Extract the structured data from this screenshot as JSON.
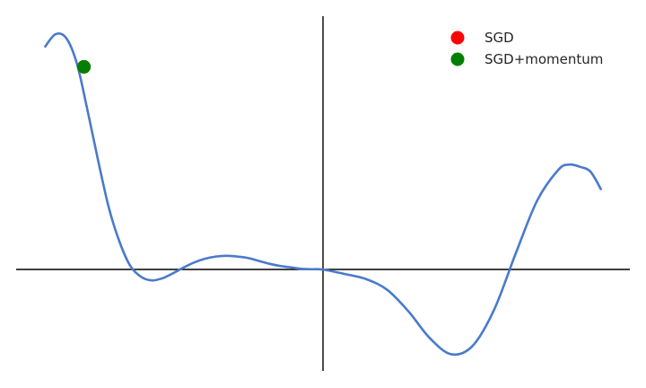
{
  "chart_data": {
    "type": "line",
    "title": "",
    "xlabel": "",
    "ylabel": "",
    "xlim": [
      -4.3,
      4.3
    ],
    "ylim": [
      -1.4,
      3.5
    ],
    "axes_through_origin": true,
    "grid": false,
    "legend_placement": "top-right",
    "series": [
      {
        "kind": "curve",
        "color": "#4a7acb",
        "x": [
          -3.9,
          -3.75,
          -3.6,
          -3.45,
          -3.3,
          -3.15,
          -3.0,
          -2.85,
          -2.7,
          -2.55,
          -2.4,
          -2.25,
          -2.1,
          -1.95,
          -1.8,
          -1.65,
          -1.5,
          -1.35,
          -1.2,
          -1.05,
          -0.9,
          -0.75,
          -0.6,
          -0.45,
          -0.3,
          -0.15,
          0.0,
          0.3,
          0.6,
          0.9,
          1.2,
          1.5,
          1.8,
          2.1,
          2.4,
          2.7,
          3.0,
          3.3,
          3.45,
          3.6,
          3.75,
          3.9
        ],
        "y": [
          3.07,
          3.25,
          3.2,
          2.85,
          2.2,
          1.5,
          0.85,
          0.38,
          0.05,
          -0.1,
          -0.15,
          -0.12,
          -0.05,
          0.03,
          0.1,
          0.15,
          0.18,
          0.19,
          0.18,
          0.16,
          0.12,
          0.08,
          0.05,
          0.03,
          0.01,
          0.005,
          0.0,
          -0.06,
          -0.13,
          -0.28,
          -0.58,
          -0.95,
          -1.17,
          -1.05,
          -0.55,
          0.22,
          0.95,
          1.38,
          1.45,
          1.42,
          1.35,
          1.1
        ]
      },
      {
        "kind": "point",
        "name": "SGD",
        "color": "#ff0000",
        "x": [
          -3.35
        ],
        "y": [
          2.8
        ]
      },
      {
        "kind": "point",
        "name": "SGD+momentum",
        "color": "#008000",
        "x": [
          -3.35
        ],
        "y": [
          2.8
        ]
      }
    ]
  }
}
